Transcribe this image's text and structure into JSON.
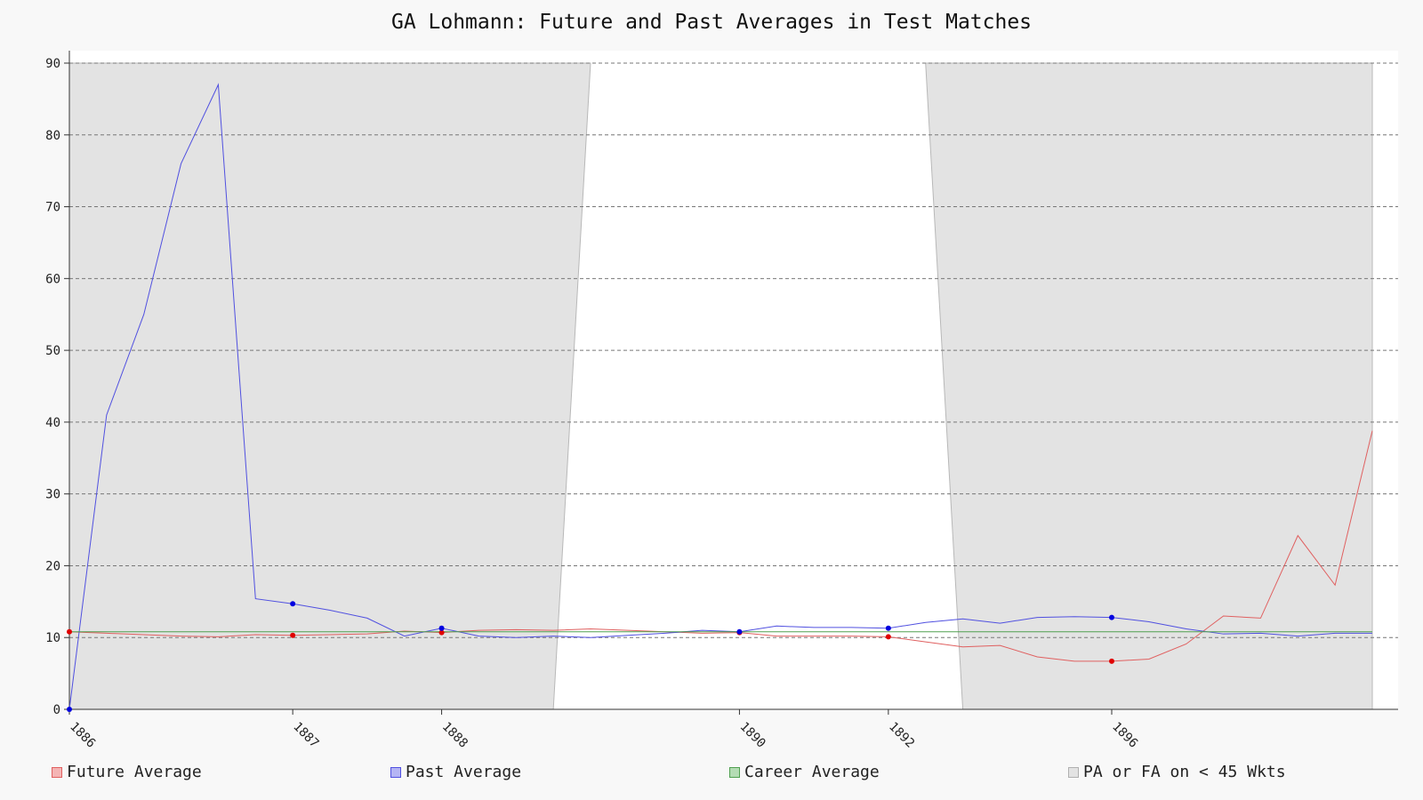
{
  "title": "GA Lohmann: Future and Past Averages in Test Matches",
  "colors": {
    "future": "#e06060",
    "past": "#5050e0",
    "career": "#50a050",
    "shade": "#e3e3e3",
    "future_marker": "#e00000",
    "past_marker": "#0000e0"
  },
  "chart_data": {
    "type": "line",
    "title": "GA Lohmann: Future and Past Averages in Test Matches",
    "xlabel": "",
    "ylabel": "",
    "ylim": [
      0,
      90
    ],
    "yticks": [
      0,
      10,
      20,
      30,
      40,
      50,
      60,
      70,
      80,
      90
    ],
    "grid": true,
    "legend_position": "bottom",
    "innings_count": 36,
    "x": [
      1,
      2,
      3,
      4,
      5,
      6,
      7,
      8,
      9,
      10,
      11,
      12,
      13,
      14,
      15,
      16,
      17,
      18,
      19,
      20,
      21,
      22,
      23,
      24,
      25,
      26,
      27,
      28,
      29,
      30,
      31,
      32,
      33,
      34,
      35,
      36
    ],
    "xticks": [
      {
        "x": 1,
        "label": "1886"
      },
      {
        "x": 7,
        "label": "1887"
      },
      {
        "x": 11,
        "label": "1888"
      },
      {
        "x": 19,
        "label": "1890"
      },
      {
        "x": 23,
        "label": "1892"
      },
      {
        "x": 29,
        "label": "1896"
      }
    ],
    "series": [
      {
        "name": "Future Average",
        "key": "future",
        "values": [
          10.8,
          10.6,
          10.4,
          10.2,
          10.1,
          10.4,
          10.3,
          10.4,
          10.5,
          10.9,
          10.7,
          11.0,
          11.1,
          11.0,
          11.2,
          11.0,
          10.8,
          10.6,
          10.7,
          10.2,
          10.2,
          10.2,
          10.1,
          9.4,
          8.7,
          8.9,
          7.3,
          6.7,
          6.7,
          7.0,
          9.1,
          13.0,
          12.7,
          24.2,
          17.3,
          38.8
        ],
        "markers": [
          1,
          7,
          11,
          19,
          23,
          29
        ]
      },
      {
        "name": "Past Average",
        "key": "past",
        "values": [
          0,
          41.0,
          55.0,
          76.0,
          87.0,
          15.4,
          14.7,
          13.8,
          12.7,
          10.2,
          11.3,
          10.2,
          10.0,
          10.2,
          10.0,
          10.3,
          10.6,
          11.0,
          10.8,
          11.6,
          11.4,
          11.4,
          11.3,
          12.1,
          12.6,
          12.0,
          12.8,
          12.9,
          12.8,
          12.2,
          11.2,
          10.5,
          10.6,
          10.2,
          10.6,
          10.6
        ],
        "markers": [
          1,
          7,
          11,
          19,
          23,
          29
        ]
      },
      {
        "name": "Career Average",
        "key": "career",
        "values": [
          10.8,
          10.8,
          10.8,
          10.8,
          10.8,
          10.8,
          10.8,
          10.8,
          10.8,
          10.8,
          10.8,
          10.8,
          10.8,
          10.8,
          10.8,
          10.8,
          10.8,
          10.8,
          10.8,
          10.8,
          10.8,
          10.8,
          10.8,
          10.8,
          10.8,
          10.8,
          10.8,
          10.8,
          10.8,
          10.8,
          10.8,
          10.8,
          10.8,
          10.8,
          10.8,
          10.8
        ]
      }
    ],
    "shaded_regions": [
      {
        "name": "PA or FA on < 45 Wkts",
        "x_top": [
          1,
          15
        ],
        "x_bottom": [
          1,
          14
        ]
      },
      {
        "name": "PA or FA on < 45 Wkts",
        "x_top": [
          24,
          36
        ],
        "x_bottom": [
          25,
          36
        ]
      }
    ]
  },
  "legend": [
    {
      "label": "Future Average",
      "key": "future"
    },
    {
      "label": "Past Average",
      "key": "past"
    },
    {
      "label": "Career Average",
      "key": "career"
    },
    {
      "label": "PA or FA on < 45 Wkts",
      "key": "shade"
    }
  ]
}
